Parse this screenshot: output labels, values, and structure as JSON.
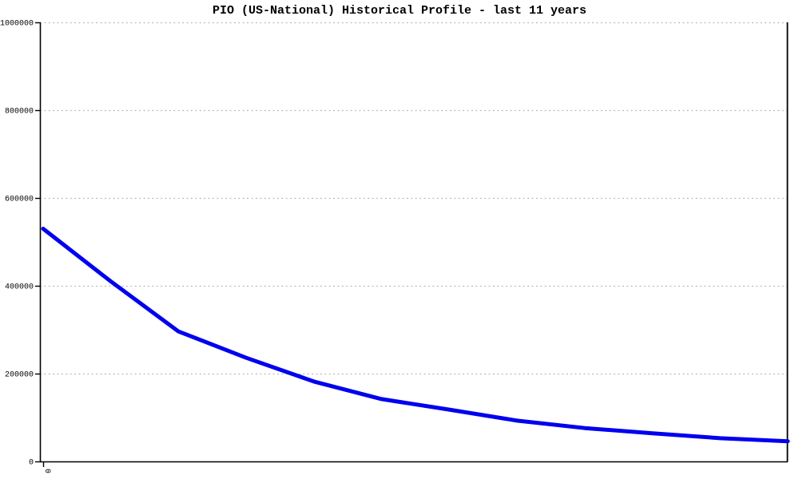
{
  "title": "PIO (US-National) Historical Profile - last 11 years",
  "chart_data": {
    "type": "line",
    "title": "PIO (US-National) Historical Profile - last 11 years",
    "x": [
      0,
      1,
      2,
      3,
      4,
      5,
      6,
      7,
      8,
      9,
      10,
      11
    ],
    "series": [
      {
        "name": "PIO",
        "color": "#0000ee",
        "values": [
          530000,
          410000,
          296000,
          236000,
          182000,
          142000,
          118000,
          93000,
          76000,
          64000,
          53000,
          46000
        ]
      }
    ],
    "xlabel": "",
    "ylabel": "",
    "xlim": [
      0,
      11
    ],
    "ylim": [
      0,
      1000000
    ],
    "y_ticks": [
      0,
      200000,
      400000,
      600000,
      800000,
      1000000
    ],
    "y_tick_labels": [
      "0",
      "200000",
      "400000",
      "600000",
      "800000",
      "1000000"
    ],
    "x_ticks": [
      0
    ],
    "x_tick_labels": [
      "0"
    ],
    "grid": "horizontal-dotted",
    "legend_position": "none",
    "colors": {
      "line": "#0000ee",
      "grid": "#b4b4b4",
      "axis": "#000000",
      "background": "#ffffff",
      "text": "#000000"
    }
  }
}
